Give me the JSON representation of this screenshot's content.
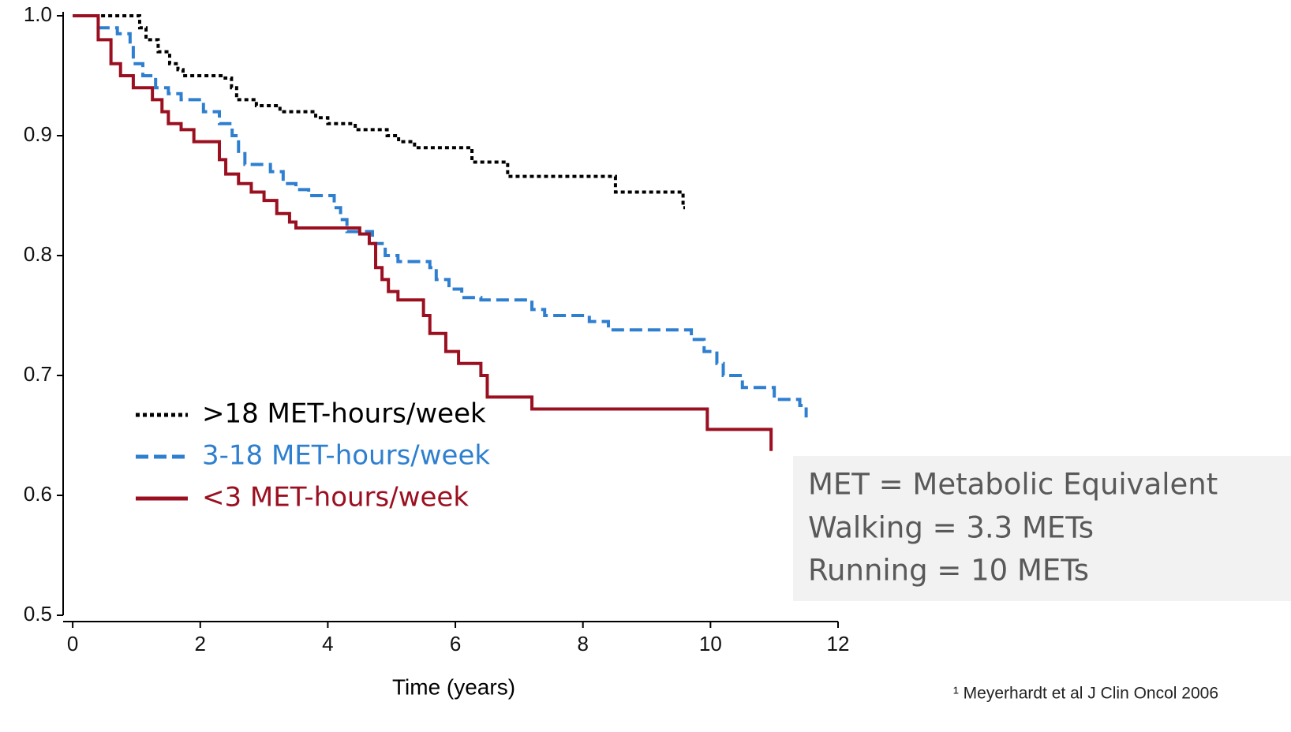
{
  "chart_data": {
    "type": "line",
    "step": true,
    "x_label": "Time (years)",
    "xlim": [
      -0.15,
      12
    ],
    "xticks": [
      0,
      2,
      4,
      6,
      8,
      10,
      12
    ],
    "ylim": [
      0.5,
      1.0
    ],
    "yticks": [
      0.5,
      0.6,
      0.7,
      0.8,
      0.9,
      {
        "value": 1,
        "label": "1.0"
      }
    ],
    "series": [
      {
        "name": ">18 MET-hours/week",
        "color": "#000000",
        "dash": "dotted",
        "x": [
          0,
          1.05,
          1.15,
          1.34,
          1.52,
          1.65,
          1.73,
          1.96,
          2.39,
          2.49,
          2.57,
          2.88,
          3.25,
          3.81,
          4.0,
          4.43,
          4.93,
          5.11,
          5.36,
          6.26,
          6.82,
          8.51,
          9.57,
          9.6
        ],
        "values": [
          1,
          0.99,
          0.98,
          0.97,
          0.96,
          0.955,
          0.95,
          0.95,
          0.948,
          0.94,
          0.93,
          0.925,
          0.92,
          0.915,
          0.91,
          0.905,
          0.9,
          0.895,
          0.89,
          0.878,
          0.866,
          0.853,
          0.84,
          0.84
        ]
      },
      {
        "name": "3-18 MET-hours/week",
        "color": "#2e7fd0",
        "dash": "dashed",
        "x": [
          0,
          0.4,
          0.7,
          0.9,
          0.95,
          1.1,
          1.3,
          1.5,
          1.7,
          2.05,
          2.3,
          2.5,
          2.6,
          2.7,
          3.1,
          3.3,
          3.5,
          3.7,
          4.1,
          4.2,
          4.3,
          4.7,
          4.9,
          5.1,
          5.6,
          5.7,
          5.9,
          6.1,
          6.4,
          7.2,
          7.4,
          8.1,
          8.4,
          9.7,
          9.9,
          10.1,
          10.2,
          10.5,
          11.0,
          11.4,
          11.5
        ],
        "values": [
          1,
          0.99,
          0.985,
          0.975,
          0.96,
          0.95,
          0.94,
          0.935,
          0.93,
          0.92,
          0.91,
          0.9,
          0.885,
          0.876,
          0.87,
          0.86,
          0.855,
          0.85,
          0.84,
          0.83,
          0.82,
          0.81,
          0.8,
          0.795,
          0.79,
          0.78,
          0.772,
          0.765,
          0.763,
          0.755,
          0.75,
          0.745,
          0.738,
          0.73,
          0.72,
          0.71,
          0.7,
          0.69,
          0.68,
          0.675,
          0.665
        ]
      },
      {
        "name": "<3 MET-hours/week",
        "color": "#9b1020",
        "dash": "solid",
        "x": [
          0,
          0.4,
          0.6,
          0.75,
          0.95,
          1.25,
          1.4,
          1.5,
          1.7,
          1.9,
          2.3,
          2.4,
          2.6,
          2.8,
          3.0,
          3.2,
          3.4,
          3.5,
          4.5,
          4.65,
          4.75,
          4.85,
          4.95,
          5.1,
          5.5,
          5.6,
          5.85,
          6.05,
          6.4,
          6.5,
          7.2,
          9.95,
          10.95
        ],
        "values": [
          1,
          0.98,
          0.96,
          0.95,
          0.94,
          0.93,
          0.92,
          0.91,
          0.905,
          0.895,
          0.88,
          0.868,
          0.86,
          0.853,
          0.846,
          0.835,
          0.828,
          0.823,
          0.818,
          0.81,
          0.79,
          0.78,
          0.77,
          0.763,
          0.75,
          0.735,
          0.72,
          0.71,
          0.7,
          0.682,
          0.672,
          0.655,
          0.637
        ]
      }
    ],
    "annotations": [
      "MET = Metabolic Equivalent",
      "Walking = 3.3 METs",
      "Running = 10 METs"
    ],
    "footnote": "¹ Meyerhardt et al J Clin Oncol 2006"
  }
}
